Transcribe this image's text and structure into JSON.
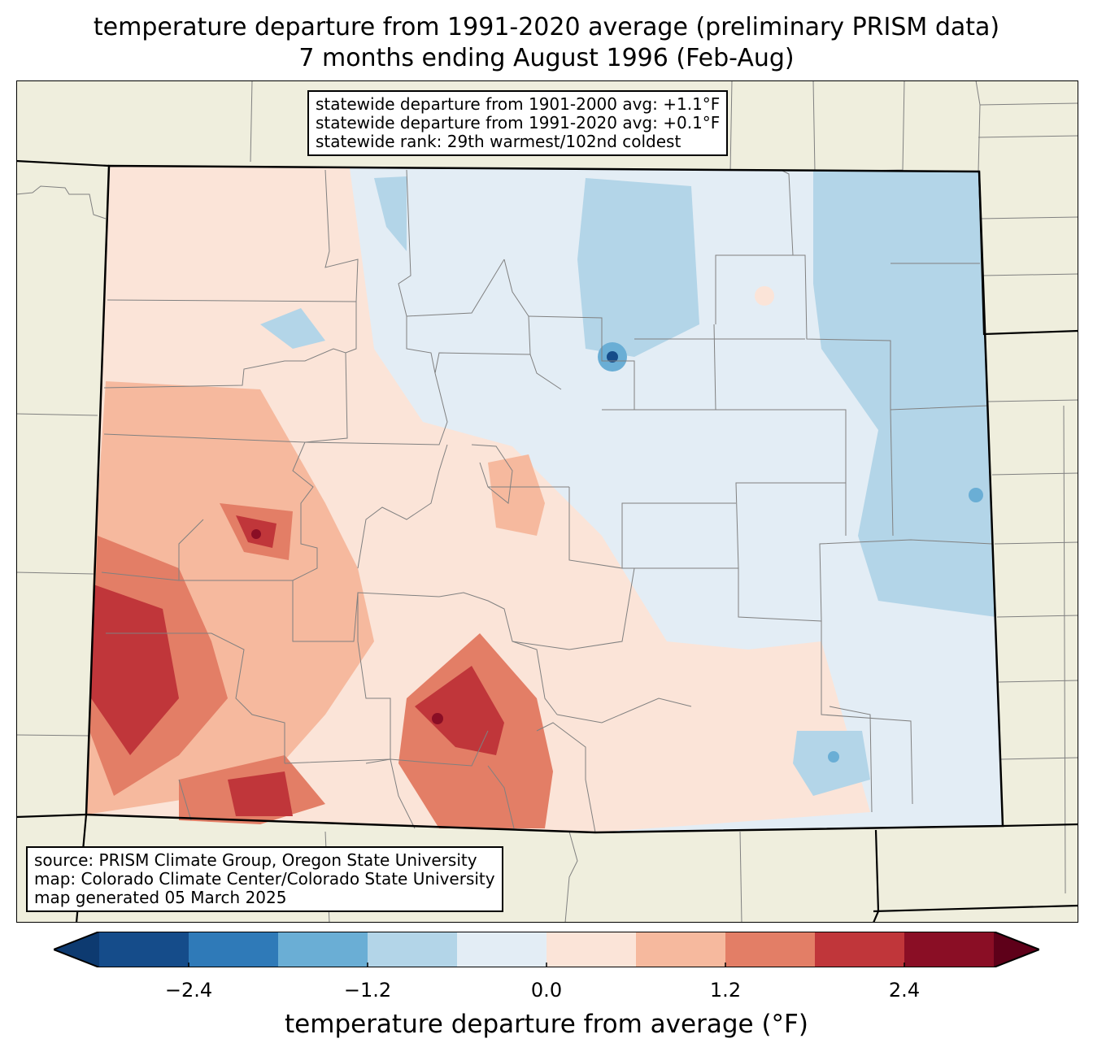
{
  "title": {
    "line1": "temperature departure from 1991-2020 average (preliminary PRISM data)",
    "line2": "7 months ending August 1996 (Feb-Aug)"
  },
  "stats_box": {
    "line1": "statewide departure from 1901-2000 avg: +1.1°F",
    "line2": "statewide departure from 1991-2020 avg: +0.1°F",
    "line3": "statewide rank: 29th warmest/102nd coldest"
  },
  "source_box": {
    "line1": "source: PRISM Climate Group, Oregon State University",
    "line2": "map: Colorado Climate Center/Colorado State University",
    "line3": "map generated 05 March 2025"
  },
  "colorbar": {
    "label": "temperature departure from average (°F)",
    "ticks": [
      "−2.4",
      "−1.2",
      "0.0",
      "1.2",
      "2.4"
    ],
    "bins": [
      -3.0,
      -2.4,
      -1.8,
      -1.2,
      -0.6,
      0.0,
      0.6,
      1.2,
      1.8,
      2.4,
      3.0
    ],
    "colors": [
      "#0d3a70",
      "#154c8a",
      "#2f7ab8",
      "#6aaed5",
      "#b3d5e8",
      "#e3edf5",
      "#fbe4d8",
      "#f6b99e",
      "#e37e66",
      "#c0363a",
      "#8a0e25",
      "#5e0019"
    ]
  },
  "map_colors": {
    "land": "#efeedd",
    "state_border": "#000000",
    "county_border": "#808080"
  }
}
